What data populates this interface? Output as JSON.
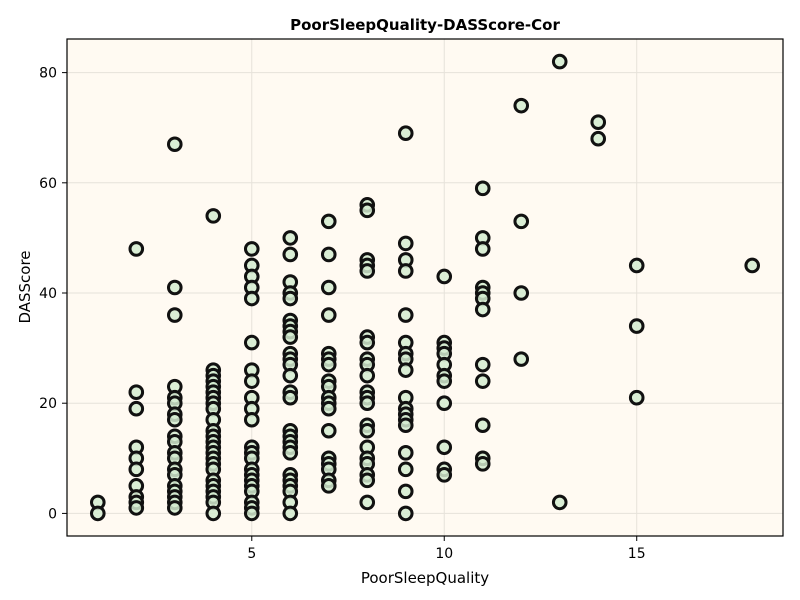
{
  "chart_data": {
    "type": "scatter",
    "title": "PoorSleepQuality-DASScore-Cor",
    "xlabel": "PoorSleepQuality",
    "ylabel": "DASScore",
    "xlim": [
      0.2,
      18.8
    ],
    "ylim": [
      -4.1,
      86.1
    ],
    "xticks": [
      5,
      10,
      15
    ],
    "yticks": [
      0,
      20,
      40,
      60,
      80
    ],
    "grid": true,
    "legend": "none",
    "colors": {
      "background": "#fffaf2",
      "grid": "#e6e2da",
      "marker_fill": "#d4ebd0",
      "marker_edge": "#111111",
      "frame": "#000000"
    },
    "points": [
      [
        1,
        2
      ],
      [
        1,
        0
      ],
      [
        2,
        48
      ],
      [
        2,
        22
      ],
      [
        2,
        19
      ],
      [
        2,
        12
      ],
      [
        2,
        10
      ],
      [
        2,
        8
      ],
      [
        2,
        5
      ],
      [
        2,
        3
      ],
      [
        2,
        2
      ],
      [
        2,
        1
      ],
      [
        3,
        67
      ],
      [
        3,
        41
      ],
      [
        3,
        36
      ],
      [
        3,
        23
      ],
      [
        3,
        21
      ],
      [
        3,
        20
      ],
      [
        3,
        18
      ],
      [
        3,
        17
      ],
      [
        3,
        14
      ],
      [
        3,
        13
      ],
      [
        3,
        11
      ],
      [
        3,
        10
      ],
      [
        3,
        8
      ],
      [
        3,
        7
      ],
      [
        3,
        5
      ],
      [
        3,
        4
      ],
      [
        3,
        3
      ],
      [
        3,
        2
      ],
      [
        3,
        1
      ],
      [
        4,
        54
      ],
      [
        4,
        26
      ],
      [
        4,
        25
      ],
      [
        4,
        24
      ],
      [
        4,
        23
      ],
      [
        4,
        22
      ],
      [
        4,
        21
      ],
      [
        4,
        20
      ],
      [
        4,
        19
      ],
      [
        4,
        17
      ],
      [
        4,
        15
      ],
      [
        4,
        14
      ],
      [
        4,
        13
      ],
      [
        4,
        12
      ],
      [
        4,
        11
      ],
      [
        4,
        10
      ],
      [
        4,
        9
      ],
      [
        4,
        8
      ],
      [
        4,
        6
      ],
      [
        4,
        5
      ],
      [
        4,
        4
      ],
      [
        4,
        3
      ],
      [
        4,
        2
      ],
      [
        4,
        0
      ],
      [
        5,
        48
      ],
      [
        5,
        45
      ],
      [
        5,
        43
      ],
      [
        5,
        41
      ],
      [
        5,
        39
      ],
      [
        5,
        31
      ],
      [
        5,
        26
      ],
      [
        5,
        24
      ],
      [
        5,
        21
      ],
      [
        5,
        19
      ],
      [
        5,
        17
      ],
      [
        5,
        12
      ],
      [
        5,
        11
      ],
      [
        5,
        10
      ],
      [
        5,
        8
      ],
      [
        5,
        7
      ],
      [
        5,
        6
      ],
      [
        5,
        5
      ],
      [
        5,
        4
      ],
      [
        5,
        2
      ],
      [
        5,
        1
      ],
      [
        5,
        0
      ],
      [
        6,
        50
      ],
      [
        6,
        47
      ],
      [
        6,
        42
      ],
      [
        6,
        40
      ],
      [
        6,
        39
      ],
      [
        6,
        35
      ],
      [
        6,
        34
      ],
      [
        6,
        33
      ],
      [
        6,
        32
      ],
      [
        6,
        29
      ],
      [
        6,
        28
      ],
      [
        6,
        27
      ],
      [
        6,
        25
      ],
      [
        6,
        22
      ],
      [
        6,
        21
      ],
      [
        6,
        15
      ],
      [
        6,
        14
      ],
      [
        6,
        13
      ],
      [
        6,
        12
      ],
      [
        6,
        11
      ],
      [
        6,
        7
      ],
      [
        6,
        6
      ],
      [
        6,
        5
      ],
      [
        6,
        4
      ],
      [
        6,
        2
      ],
      [
        6,
        0
      ],
      [
        7,
        53
      ],
      [
        7,
        47
      ],
      [
        7,
        41
      ],
      [
        7,
        36
      ],
      [
        7,
        29
      ],
      [
        7,
        28
      ],
      [
        7,
        27
      ],
      [
        7,
        24
      ],
      [
        7,
        23
      ],
      [
        7,
        21
      ],
      [
        7,
        20
      ],
      [
        7,
        19
      ],
      [
        7,
        15
      ],
      [
        7,
        10
      ],
      [
        7,
        9
      ],
      [
        7,
        8
      ],
      [
        7,
        6
      ],
      [
        7,
        5
      ],
      [
        8,
        56
      ],
      [
        8,
        55
      ],
      [
        8,
        46
      ],
      [
        8,
        45
      ],
      [
        8,
        44
      ],
      [
        8,
        32
      ],
      [
        8,
        31
      ],
      [
        8,
        28
      ],
      [
        8,
        27
      ],
      [
        8,
        25
      ],
      [
        8,
        22
      ],
      [
        8,
        21
      ],
      [
        8,
        20
      ],
      [
        8,
        16
      ],
      [
        8,
        15
      ],
      [
        8,
        12
      ],
      [
        8,
        10
      ],
      [
        8,
        9
      ],
      [
        8,
        7
      ],
      [
        8,
        6
      ],
      [
        8,
        2
      ],
      [
        9,
        69
      ],
      [
        9,
        49
      ],
      [
        9,
        46
      ],
      [
        9,
        44
      ],
      [
        9,
        36
      ],
      [
        9,
        31
      ],
      [
        9,
        29
      ],
      [
        9,
        28
      ],
      [
        9,
        26
      ],
      [
        9,
        21
      ],
      [
        9,
        19
      ],
      [
        9,
        18
      ],
      [
        9,
        17
      ],
      [
        9,
        16
      ],
      [
        9,
        11
      ],
      [
        9,
        8
      ],
      [
        9,
        4
      ],
      [
        9,
        0
      ],
      [
        10,
        43
      ],
      [
        10,
        31
      ],
      [
        10,
        30
      ],
      [
        10,
        29
      ],
      [
        10,
        27
      ],
      [
        10,
        25
      ],
      [
        10,
        24
      ],
      [
        10,
        20
      ],
      [
        10,
        12
      ],
      [
        10,
        8
      ],
      [
        10,
        7
      ],
      [
        11,
        59
      ],
      [
        11,
        50
      ],
      [
        11,
        48
      ],
      [
        11,
        41
      ],
      [
        11,
        40
      ],
      [
        11,
        39
      ],
      [
        11,
        37
      ],
      [
        11,
        27
      ],
      [
        11,
        24
      ],
      [
        11,
        16
      ],
      [
        11,
        10
      ],
      [
        11,
        9
      ],
      [
        12,
        74
      ],
      [
        12,
        53
      ],
      [
        12,
        40
      ],
      [
        12,
        28
      ],
      [
        13,
        82
      ],
      [
        13,
        2
      ],
      [
        14,
        71
      ],
      [
        14,
        68
      ],
      [
        15,
        45
      ],
      [
        15,
        34
      ],
      [
        15,
        21
      ],
      [
        18,
        45
      ]
    ]
  }
}
